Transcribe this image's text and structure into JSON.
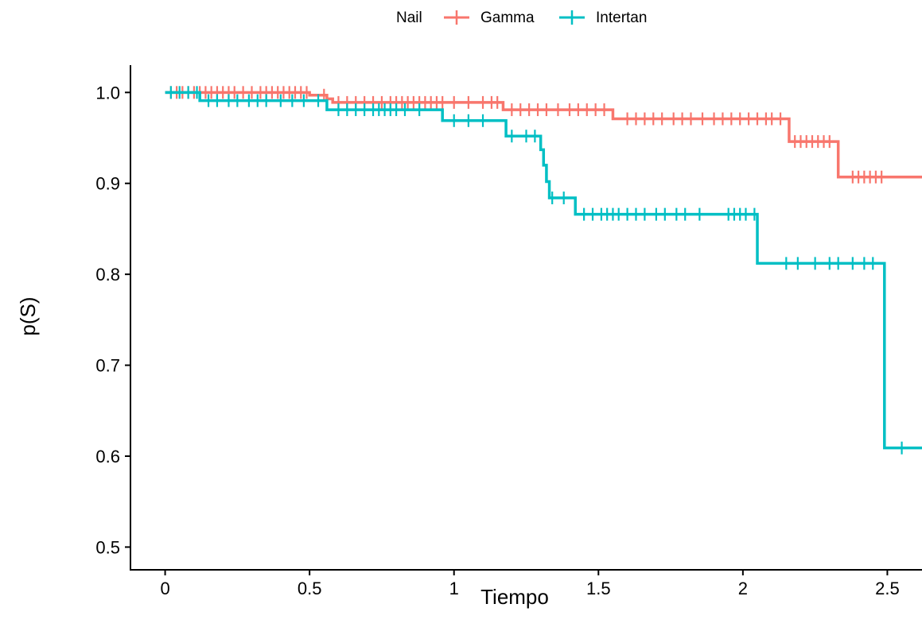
{
  "chart_data": {
    "type": "line",
    "xlabel": "Tiempo",
    "ylabel": "p(S)",
    "xlim": [
      -0.12,
      2.62
    ],
    "ylim": [
      0.475,
      1.03
    ],
    "x_ticks": [
      0,
      0.5,
      1,
      1.5,
      2,
      2.5
    ],
    "x_tick_labels": [
      "0",
      "0.5",
      "1",
      "1.5",
      "2",
      "2.5"
    ],
    "y_ticks": [
      0.5,
      0.6,
      0.7,
      0.8,
      0.9,
      1.0
    ],
    "y_tick_labels": [
      "0.5",
      "0.6",
      "0.7",
      "0.8",
      "0.9",
      "1.0"
    ],
    "grid": false,
    "legend": {
      "title": "Nail",
      "position": "top",
      "entries": [
        "Gamma",
        "Intertan"
      ]
    },
    "series": [
      {
        "name": "Gamma",
        "color": "#F8766D",
        "steps": [
          [
            0,
            1.0
          ],
          [
            0.5,
            0.997
          ],
          [
            0.56,
            0.993
          ],
          [
            0.58,
            0.989
          ],
          [
            1.17,
            0.981
          ],
          [
            1.55,
            0.971
          ],
          [
            2.16,
            0.946
          ],
          [
            2.33,
            0.907
          ],
          [
            2.62,
            0.907
          ]
        ],
        "censor_times": [
          0.02,
          0.04,
          0.06,
          0.08,
          0.1,
          0.12,
          0.14,
          0.16,
          0.18,
          0.2,
          0.22,
          0.24,
          0.27,
          0.3,
          0.33,
          0.35,
          0.37,
          0.39,
          0.41,
          0.43,
          0.45,
          0.47,
          0.49,
          0.55,
          0.6,
          0.63,
          0.66,
          0.69,
          0.72,
          0.75,
          0.78,
          0.8,
          0.82,
          0.84,
          0.86,
          0.88,
          0.9,
          0.92,
          0.94,
          0.96,
          1.0,
          1.05,
          1.1,
          1.13,
          1.15,
          1.2,
          1.23,
          1.26,
          1.29,
          1.32,
          1.36,
          1.4,
          1.43,
          1.46,
          1.49,
          1.52,
          1.6,
          1.63,
          1.66,
          1.69,
          1.72,
          1.76,
          1.79,
          1.82,
          1.86,
          1.9,
          1.93,
          1.96,
          1.99,
          2.02,
          2.05,
          2.08,
          2.1,
          2.13,
          2.18,
          2.2,
          2.22,
          2.24,
          2.26,
          2.28,
          2.3,
          2.38,
          2.4,
          2.42,
          2.44,
          2.46,
          2.48
        ]
      },
      {
        "name": "Intertan",
        "color": "#00BFC4",
        "steps": [
          [
            0,
            1.0
          ],
          [
            0.12,
            0.991
          ],
          [
            0.56,
            0.981
          ],
          [
            0.96,
            0.969
          ],
          [
            1.18,
            0.952
          ],
          [
            1.3,
            0.937
          ],
          [
            1.31,
            0.92
          ],
          [
            1.32,
            0.902
          ],
          [
            1.33,
            0.884
          ],
          [
            1.42,
            0.866
          ],
          [
            2.05,
            0.812
          ],
          [
            2.49,
            0.609
          ],
          [
            2.62,
            0.609
          ]
        ],
        "censor_times": [
          0.02,
          0.05,
          0.08,
          0.11,
          0.15,
          0.18,
          0.22,
          0.25,
          0.29,
          0.32,
          0.35,
          0.4,
          0.44,
          0.48,
          0.53,
          0.6,
          0.63,
          0.66,
          0.69,
          0.72,
          0.74,
          0.76,
          0.78,
          0.8,
          0.83,
          0.88,
          1.0,
          1.05,
          1.1,
          1.2,
          1.25,
          1.28,
          1.34,
          1.38,
          1.45,
          1.48,
          1.51,
          1.53,
          1.55,
          1.57,
          1.6,
          1.63,
          1.66,
          1.7,
          1.73,
          1.77,
          1.8,
          1.85,
          1.95,
          1.97,
          1.99,
          2.01,
          2.04,
          2.15,
          2.19,
          2.25,
          2.3,
          2.33,
          2.38,
          2.42,
          2.45,
          2.55
        ]
      }
    ]
  }
}
